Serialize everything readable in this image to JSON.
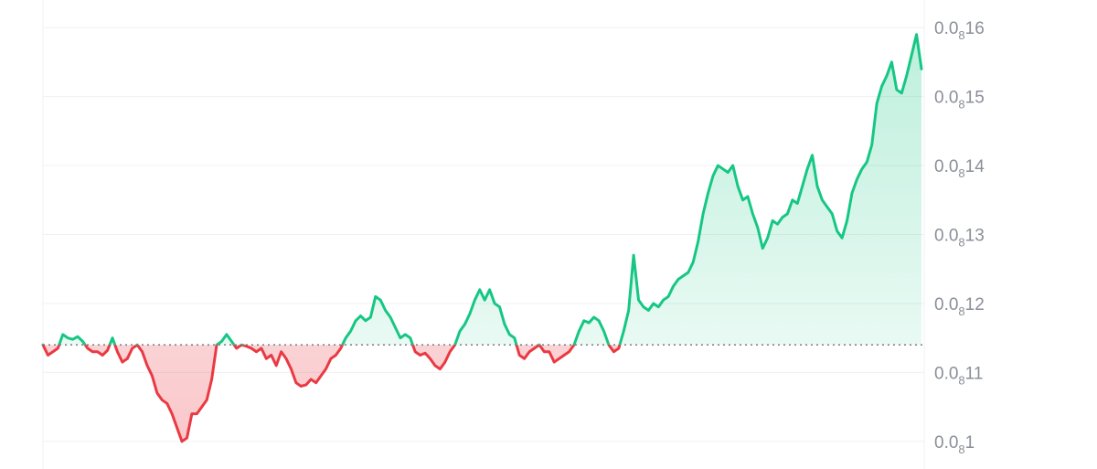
{
  "chart_data": {
    "type": "area",
    "title": "",
    "xlabel": "",
    "ylabel": "",
    "baseline": 11.4,
    "ylim": [
      9.6,
      16.4
    ],
    "grid": true,
    "legend": "none",
    "colors": {
      "up": "#16c784",
      "down": "#ea3943",
      "grid": "#eef0f3",
      "axis_text": "#8a8f98"
    },
    "y_ticks": [
      {
        "value": 16,
        "prefix": "0.0",
        "sub": "8",
        "suffix": "16"
      },
      {
        "value": 15,
        "prefix": "0.0",
        "sub": "8",
        "suffix": "15"
      },
      {
        "value": 14,
        "prefix": "0.0",
        "sub": "8",
        "suffix": "14"
      },
      {
        "value": 13,
        "prefix": "0.0",
        "sub": "8",
        "suffix": "13"
      },
      {
        "value": 12,
        "prefix": "0.0",
        "sub": "8",
        "suffix": "12"
      },
      {
        "value": 11,
        "prefix": "0.0",
        "sub": "8",
        "suffix": "11"
      },
      {
        "value": 10,
        "prefix": "0.0",
        "sub": "8",
        "suffix": "1"
      }
    ],
    "series": [
      {
        "values": [
          11.4,
          11.25,
          11.3,
          11.35,
          11.55,
          11.5,
          11.48,
          11.52,
          11.45,
          11.35,
          11.3,
          11.3,
          11.25,
          11.32,
          11.5,
          11.3,
          11.15,
          11.2,
          11.35,
          11.4,
          11.3,
          11.1,
          10.95,
          10.7,
          10.6,
          10.55,
          10.4,
          10.2,
          10.0,
          10.05,
          10.4,
          10.4,
          10.5,
          10.6,
          10.9,
          11.4,
          11.45,
          11.55,
          11.45,
          11.35,
          11.4,
          11.38,
          11.35,
          11.3,
          11.35,
          11.2,
          11.25,
          11.1,
          11.3,
          11.2,
          11.05,
          10.85,
          10.8,
          10.82,
          10.9,
          10.85,
          10.95,
          11.05,
          11.2,
          11.25,
          11.35,
          11.5,
          11.6,
          11.75,
          11.82,
          11.75,
          11.8,
          12.1,
          12.05,
          11.9,
          11.8,
          11.65,
          11.5,
          11.55,
          11.5,
          11.3,
          11.25,
          11.28,
          11.2,
          11.1,
          11.05,
          11.15,
          11.3,
          11.4,
          11.6,
          11.7,
          11.85,
          12.05,
          12.2,
          12.05,
          12.2,
          12.0,
          11.95,
          11.7,
          11.55,
          11.5,
          11.25,
          11.2,
          11.3,
          11.35,
          11.4,
          11.3,
          11.3,
          11.15,
          11.2,
          11.25,
          11.3,
          11.4,
          11.6,
          11.75,
          11.72,
          11.8,
          11.75,
          11.6,
          11.4,
          11.3,
          11.35,
          11.6,
          11.9,
          12.7,
          12.05,
          11.95,
          11.9,
          12.0,
          11.95,
          12.05,
          12.1,
          12.25,
          12.35,
          12.4,
          12.45,
          12.6,
          12.9,
          13.3,
          13.6,
          13.85,
          14.0,
          13.95,
          13.9,
          14.0,
          13.7,
          13.5,
          13.55,
          13.3,
          13.1,
          12.8,
          12.95,
          13.2,
          13.15,
          13.25,
          13.3,
          13.5,
          13.45,
          13.7,
          13.95,
          14.15,
          13.7,
          13.5,
          13.4,
          13.3,
          13.05,
          12.95,
          13.2,
          13.6,
          13.8,
          13.95,
          14.05,
          14.3,
          14.9,
          15.15,
          15.3,
          15.5,
          15.1,
          15.05,
          15.3,
          15.6,
          15.9,
          15.4
        ]
      }
    ]
  }
}
